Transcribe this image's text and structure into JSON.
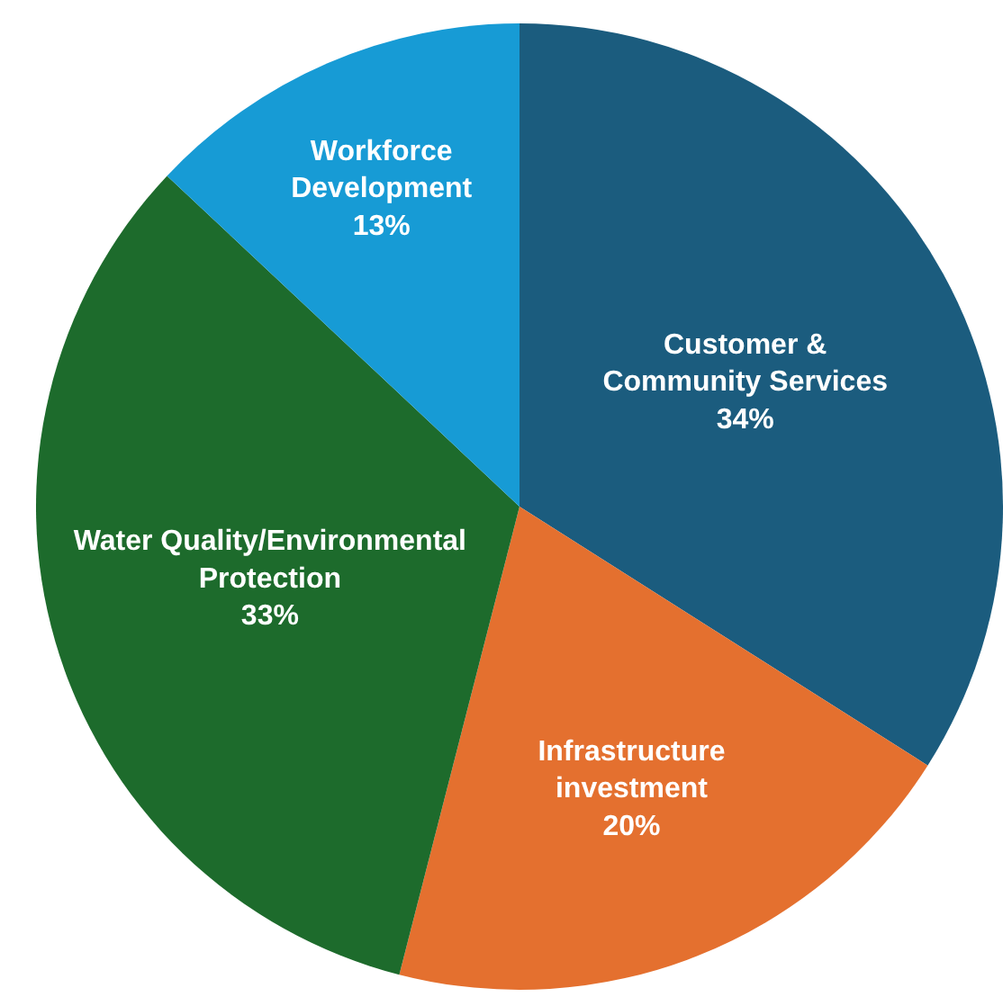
{
  "chart_data": {
    "type": "pie",
    "categories": [
      "Customer & Community Services",
      "Infrastructure investment",
      "Water Quality/Environmental Protection",
      "Workforce Development"
    ],
    "values": [
      34,
      20,
      33,
      13
    ],
    "value_labels": [
      "34%",
      "20%",
      "33%",
      "13%"
    ],
    "colors": [
      "#1b5c7e",
      "#e4702f",
      "#1d6b2c",
      "#179bd5"
    ],
    "legend": false
  }
}
